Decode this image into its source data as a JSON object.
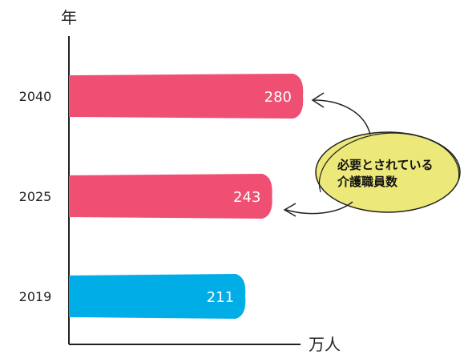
{
  "chart_data": {
    "type": "bar",
    "orientation": "horizontal",
    "categories": [
      "2040",
      "2025",
      "2019"
    ],
    "values": [
      280,
      243,
      211
    ],
    "bar_colors": [
      "#ef4f72",
      "#ef4f72",
      "#00ade6"
    ],
    "ylabel": "年",
    "xlabel": "万人",
    "grid": false
  },
  "callout": {
    "line1": "必要とされている",
    "line2": "介護職員数",
    "fill_color": "#ece87a"
  }
}
